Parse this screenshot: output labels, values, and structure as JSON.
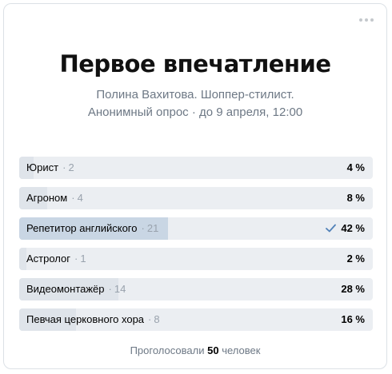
{
  "poll": {
    "title": "Первое впечатление",
    "subtitle": "Полина Вахитова. Шоппер-стилист.",
    "meta": "Анонимный опрос · до 9 апреля, 12:00",
    "separator": "·",
    "more_icon": "more-horizontal-icon",
    "options": [
      {
        "label": "Юрист",
        "count": "2",
        "percent": "4 %",
        "share": 0.04,
        "voted": false
      },
      {
        "label": "Агроном",
        "count": "4",
        "percent": "8 %",
        "share": 0.08,
        "voted": false
      },
      {
        "label": "Репетитор английского",
        "count": "21",
        "percent": "42 %",
        "share": 0.42,
        "voted": true
      },
      {
        "label": "Астролог",
        "count": "1",
        "percent": "2 %",
        "share": 0.02,
        "voted": false
      },
      {
        "label": "Видеомонтажёр",
        "count": "14",
        "percent": "28 %",
        "share": 0.28,
        "voted": false
      },
      {
        "label": "Певчая церковного хора",
        "count": "8",
        "percent": "16 %",
        "share": 0.16,
        "voted": false
      }
    ],
    "footer": {
      "prefix": "Проголосовали",
      "total": "50",
      "suffix": "человек"
    },
    "colors": {
      "bar_bg": "#ebeef2",
      "bar_fill": "#dfe4ea",
      "voted_fill": "#c9d6e4",
      "accent": "#5181b8"
    }
  }
}
